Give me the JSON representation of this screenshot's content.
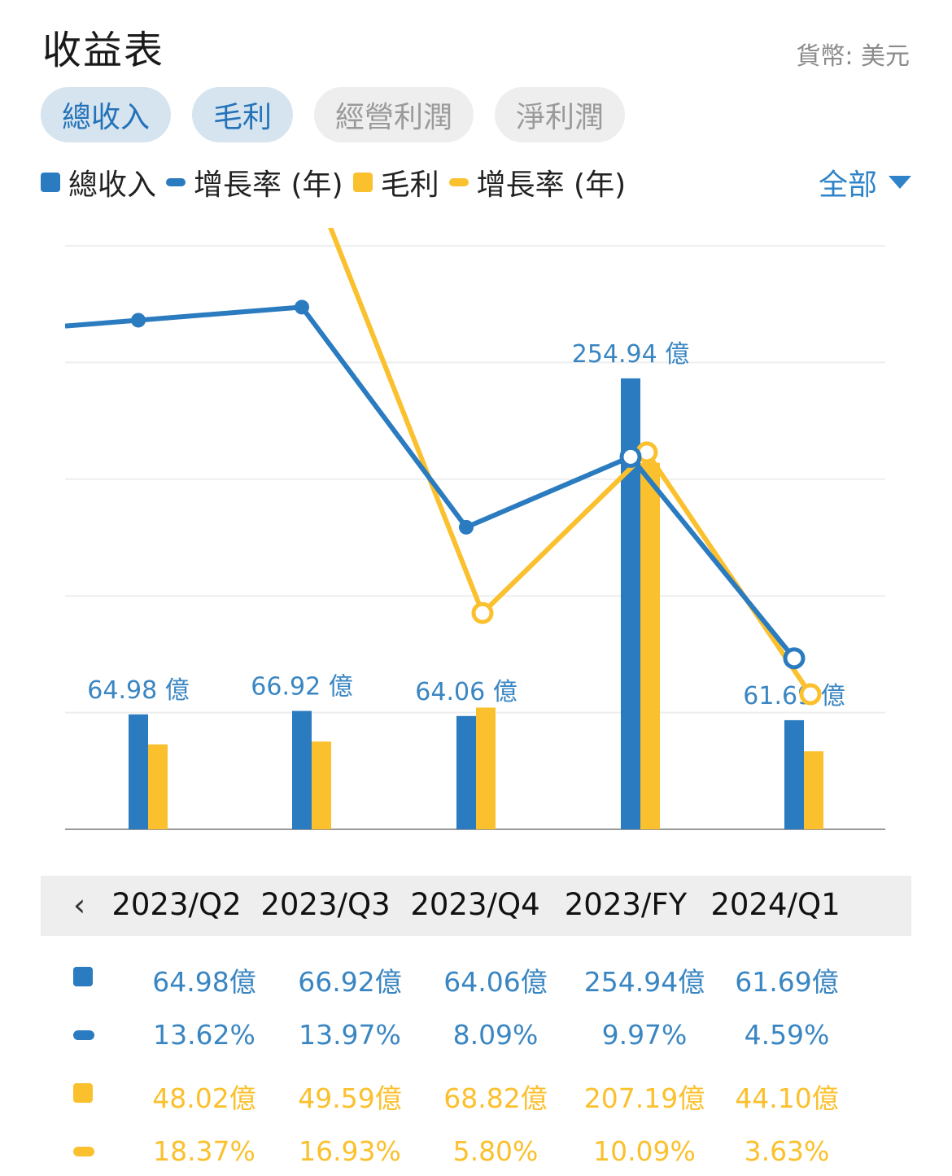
{
  "header": {
    "title": "收益表",
    "currency": "貨幣: 美元"
  },
  "tabs": [
    {
      "label": "總收入",
      "active": true
    },
    {
      "label": "毛利",
      "active": true
    },
    {
      "label": "經營利潤",
      "active": false
    },
    {
      "label": "淨利潤",
      "active": false
    }
  ],
  "legend": [
    {
      "label": "總收入",
      "shape": "square",
      "color": "#2a7bbf"
    },
    {
      "label": "增長率 (年)",
      "shape": "dash",
      "color": "#2a7bbf"
    },
    {
      "label": "毛利",
      "shape": "square",
      "color": "#fbc02d"
    },
    {
      "label": "增長率 (年)",
      "shape": "dash",
      "color": "#fbc02d"
    }
  ],
  "filter": {
    "label": "全部"
  },
  "nav": {
    "prev_icon": "‹"
  },
  "colors": {
    "blue": "#2a7bbf",
    "yellow": "#fbc02d",
    "label_blue": "#3a86c2"
  },
  "chart_data": {
    "type": "bar",
    "categories": [
      "2023/Q2",
      "2023/Q3",
      "2023/Q4",
      "2023/FY",
      "2024/Q1"
    ],
    "series": [
      {
        "name": "總收入",
        "kind": "bar",
        "values": [
          64.98,
          66.92,
          64.06,
          254.94,
          61.69
        ],
        "labels": [
          "64.98億",
          "66.92億",
          "64.06億",
          "254.94億",
          "61.69億"
        ]
      },
      {
        "name": "增長率 (年)",
        "kind": "line",
        "of": "總收入",
        "values": [
          13.62,
          13.97,
          8.09,
          9.97,
          4.59
        ],
        "labels": [
          "13.62%",
          "13.97%",
          "8.09%",
          "9.97%",
          "4.59%"
        ]
      },
      {
        "name": "毛利",
        "kind": "bar",
        "values": [
          48.02,
          49.59,
          68.82,
          207.19,
          44.1
        ],
        "labels": [
          "48.02億",
          "49.59億",
          "68.82億",
          "207.19億",
          "44.10億"
        ]
      },
      {
        "name": "增長率 (年)",
        "kind": "line",
        "of": "毛利",
        "values": [
          18.37,
          16.93,
          5.8,
          10.09,
          3.63
        ],
        "labels": [
          "18.37%",
          "16.93%",
          "5.80%",
          "10.09%",
          "3.63%"
        ]
      }
    ],
    "bar_labels": [
      "64.98 億",
      "66.92 億",
      "64.06 億",
      "254.94 億",
      "61.69 億"
    ],
    "ylim_bars": [
      0,
      300
    ],
    "grid": true
  }
}
